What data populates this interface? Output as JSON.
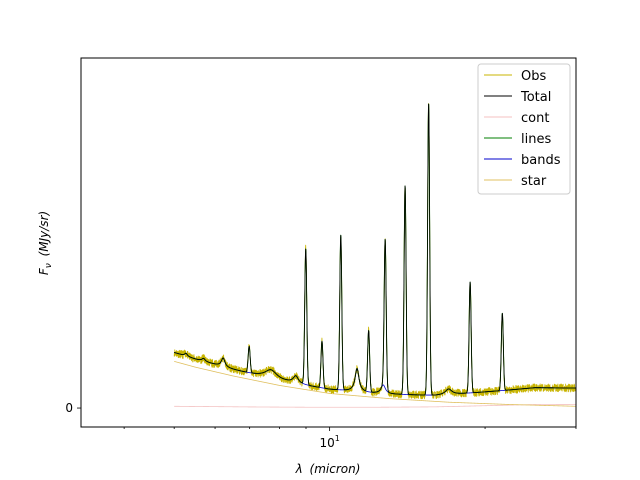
{
  "chart_data": {
    "type": "line",
    "xlabel_var": "λ",
    "xlabel_unit": "(micron)",
    "ylabel_var": "F",
    "ylabel_sub": "ν",
    "ylabel_unit": "(MJy/sr)",
    "x_scale": "log",
    "xlim": [
      3.3,
      30
    ],
    "ylim": [
      -1.3,
      24
    ],
    "x_ticks": [
      {
        "value": 10,
        "base": "10",
        "exp": "1"
      }
    ],
    "y_ticks": [
      {
        "value": 0,
        "label": "0"
      }
    ],
    "grid": false,
    "legend_position": "top-right",
    "series": [
      {
        "name": "Obs",
        "color": "#c8b400",
        "noisy": true
      },
      {
        "name": "Total",
        "color": "#000000"
      },
      {
        "name": "cont",
        "color": "#f4c2c2"
      },
      {
        "name": "lines",
        "color": "#007f00"
      },
      {
        "name": "bands",
        "color": "#0000cc"
      },
      {
        "name": "star",
        "color": "#e0c060"
      }
    ],
    "continuum_points": [
      [
        5.0,
        0.6
      ],
      [
        7.0,
        0.38
      ],
      [
        9.0,
        0.28
      ],
      [
        12.0,
        0.26
      ],
      [
        16.0,
        0.4
      ],
      [
        20.0,
        0.8
      ],
      [
        25.0,
        1.2
      ],
      [
        30.0,
        1.25
      ]
    ],
    "star_points": [
      [
        5.0,
        3.2
      ],
      [
        5.5,
        2.8
      ],
      [
        6.5,
        2.2
      ],
      [
        8.0,
        1.55
      ],
      [
        10.0,
        1.0
      ],
      [
        13.0,
        0.65
      ],
      [
        17.0,
        0.4
      ],
      [
        22.0,
        0.25
      ],
      [
        30.0,
        0.12
      ]
    ],
    "bands": [
      {
        "center": 5.27,
        "height": 0.2,
        "width": 0.04
      },
      {
        "center": 5.7,
        "height": 0.2,
        "width": 0.05
      },
      {
        "center": 6.22,
        "height": 0.6,
        "width": 0.06
      },
      {
        "center": 7.7,
        "height": 0.6,
        "width": 0.25
      },
      {
        "center": 8.6,
        "height": 0.5,
        "width": 0.12
      },
      {
        "center": 11.3,
        "height": 1.6,
        "width": 0.12
      },
      {
        "center": 12.7,
        "height": 0.6,
        "width": 0.15
      },
      {
        "center": 17.0,
        "height": 0.4,
        "width": 0.3
      }
    ],
    "lines": [
      {
        "center": 6.985,
        "height": 1.8
      },
      {
        "center": 8.99,
        "height": 9.3
      },
      {
        "center": 9.665,
        "height": 3.2
      },
      {
        "center": 10.51,
        "height": 10.6
      },
      {
        "center": 11.9,
        "height": 4.2
      },
      {
        "center": 12.81,
        "height": 10.2
      },
      {
        "center": 14.0,
        "height": 14.3
      },
      {
        "center": 15.55,
        "height": 20.0
      },
      {
        "center": 18.71,
        "height": 7.6
      },
      {
        "center": 21.6,
        "height": 5.3
      }
    ],
    "star_pahs": [
      {
        "center": 3.6,
        "height": 0.3
      },
      {
        "center": 3.8,
        "height": 0.3
      }
    ]
  }
}
